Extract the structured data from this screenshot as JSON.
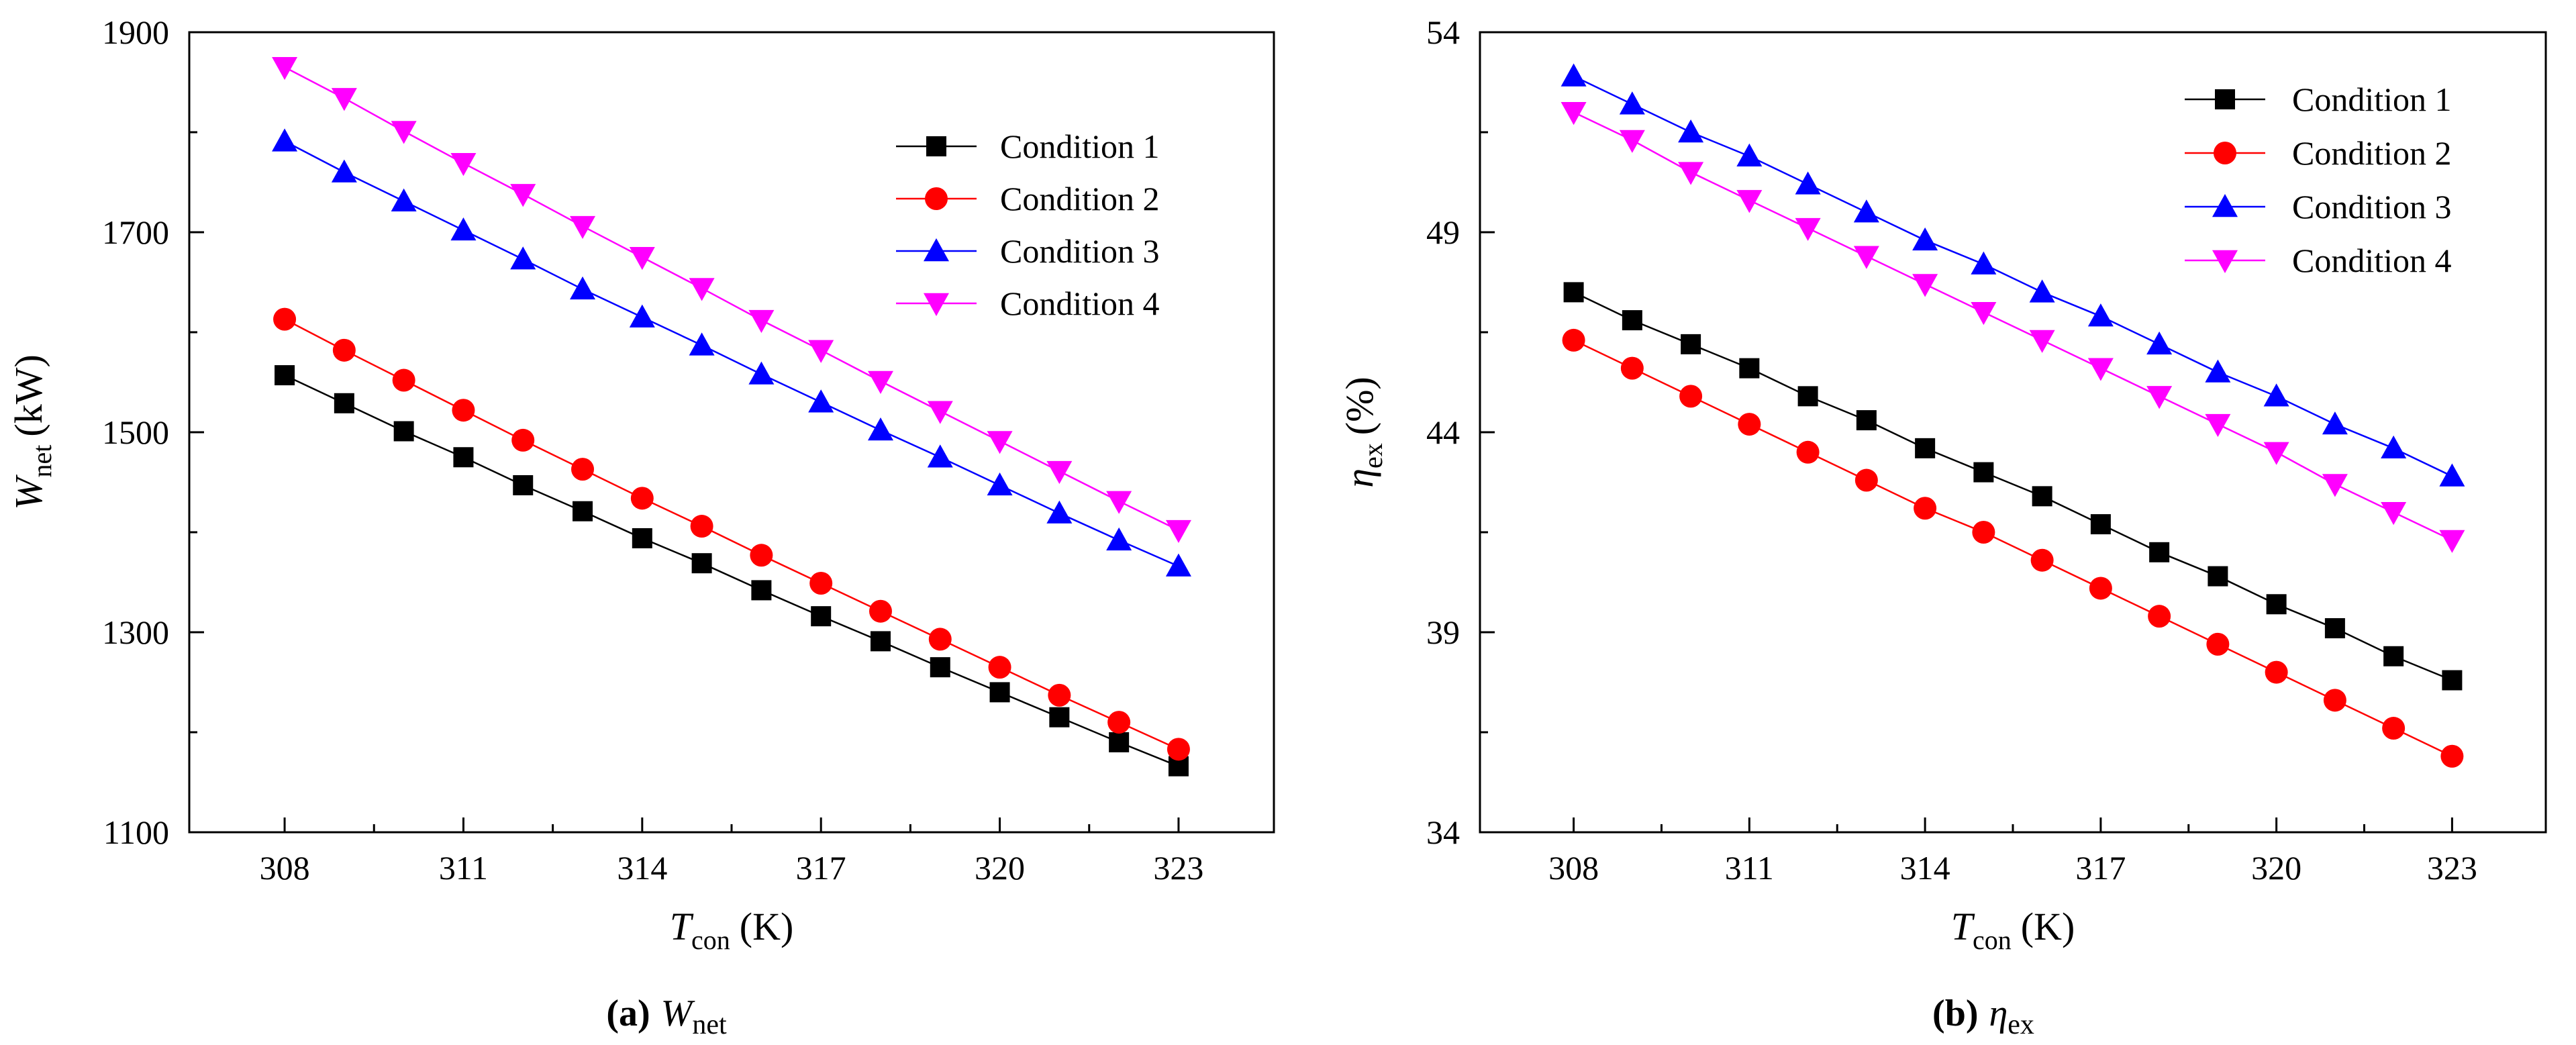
{
  "chart_data": [
    {
      "type": "line",
      "panel": "a",
      "caption": {
        "tag": "(a)",
        "symbol": "W",
        "subscript": "net"
      },
      "xlabel": {
        "symbol": "T",
        "subscript": "con",
        "unit": "(K)"
      },
      "ylabel": {
        "symbol": "W",
        "subscript": "net",
        "unit": "(kW)"
      },
      "xlim": [
        306.4,
        324.6
      ],
      "ylim": [
        1100,
        1900
      ],
      "xticks": [
        308,
        311,
        314,
        317,
        320,
        323
      ],
      "yticks": [
        1100,
        1300,
        1500,
        1700,
        1900
      ],
      "legend_position": "top-right",
      "x": [
        308,
        309,
        310,
        311,
        312,
        313,
        314,
        315,
        316,
        317,
        318,
        319,
        320,
        321,
        322,
        323
      ],
      "series": [
        {
          "name": "Condition 1",
          "color": "#000000",
          "marker": "square",
          "values": [
            1557,
            1529,
            1501,
            1475,
            1447,
            1421,
            1394,
            1369,
            1342,
            1316,
            1291,
            1265,
            1240,
            1215,
            1190,
            1166
          ]
        },
        {
          "name": "Condition 2",
          "color": "#ff0000",
          "marker": "circle",
          "values": [
            1613,
            1582,
            1552,
            1522,
            1492,
            1463,
            1434,
            1406,
            1377,
            1349,
            1321,
            1293,
            1265,
            1237,
            1210,
            1183
          ]
        },
        {
          "name": "Condition 3",
          "color": "#0000ff",
          "marker": "triangle-up",
          "values": [
            1791,
            1760,
            1731,
            1702,
            1673,
            1643,
            1615,
            1587,
            1558,
            1530,
            1502,
            1475,
            1447,
            1419,
            1392,
            1366
          ]
        },
        {
          "name": "Condition 4",
          "color": "#ff00ff",
          "marker": "triangle-down",
          "values": [
            1865,
            1834,
            1801,
            1769,
            1738,
            1706,
            1675,
            1644,
            1612,
            1582,
            1551,
            1521,
            1491,
            1461,
            1431,
            1402
          ]
        }
      ]
    },
    {
      "type": "line",
      "panel": "b",
      "caption": {
        "tag": "(b)",
        "symbol": "η",
        "subscript": "ex"
      },
      "xlabel": {
        "symbol": "T",
        "subscript": "con",
        "unit": "(K)"
      },
      "ylabel": {
        "symbol": "η",
        "subscript": "ex",
        "unit": "(%)"
      },
      "xlim": [
        306.4,
        324.6
      ],
      "ylim": [
        34,
        54
      ],
      "xticks": [
        308,
        311,
        314,
        317,
        320,
        323
      ],
      "yticks": [
        34,
        39,
        44,
        49,
        54
      ],
      "legend_position": "top-right",
      "x": [
        308,
        309,
        310,
        311,
        312,
        313,
        314,
        315,
        316,
        317,
        318,
        319,
        320,
        321,
        322,
        323
      ],
      "series": [
        {
          "name": "Condition 1",
          "color": "#000000",
          "marker": "square",
          "values": [
            47.5,
            46.8,
            46.2,
            45.6,
            44.9,
            44.3,
            43.6,
            43.0,
            42.4,
            41.7,
            41.0,
            40.4,
            39.7,
            39.1,
            38.4,
            37.8
          ]
        },
        {
          "name": "Condition 2",
          "color": "#ff0000",
          "marker": "circle",
          "values": [
            46.3,
            45.6,
            44.9,
            44.2,
            43.5,
            42.8,
            42.1,
            41.5,
            40.8,
            40.1,
            39.4,
            38.7,
            38.0,
            37.3,
            36.6,
            35.9
          ]
        },
        {
          "name": "Condition 3",
          "color": "#0000ff",
          "marker": "triangle-up",
          "values": [
            52.9,
            52.2,
            51.5,
            50.9,
            50.2,
            49.5,
            48.8,
            48.2,
            47.5,
            46.9,
            46.2,
            45.5,
            44.9,
            44.2,
            43.6,
            42.9
          ]
        },
        {
          "name": "Condition 4",
          "color": "#ff00ff",
          "marker": "triangle-down",
          "values": [
            52.0,
            51.3,
            50.5,
            49.8,
            49.1,
            48.4,
            47.7,
            47.0,
            46.3,
            45.6,
            44.9,
            44.2,
            43.5,
            42.7,
            42.0,
            41.3
          ]
        }
      ]
    }
  ]
}
